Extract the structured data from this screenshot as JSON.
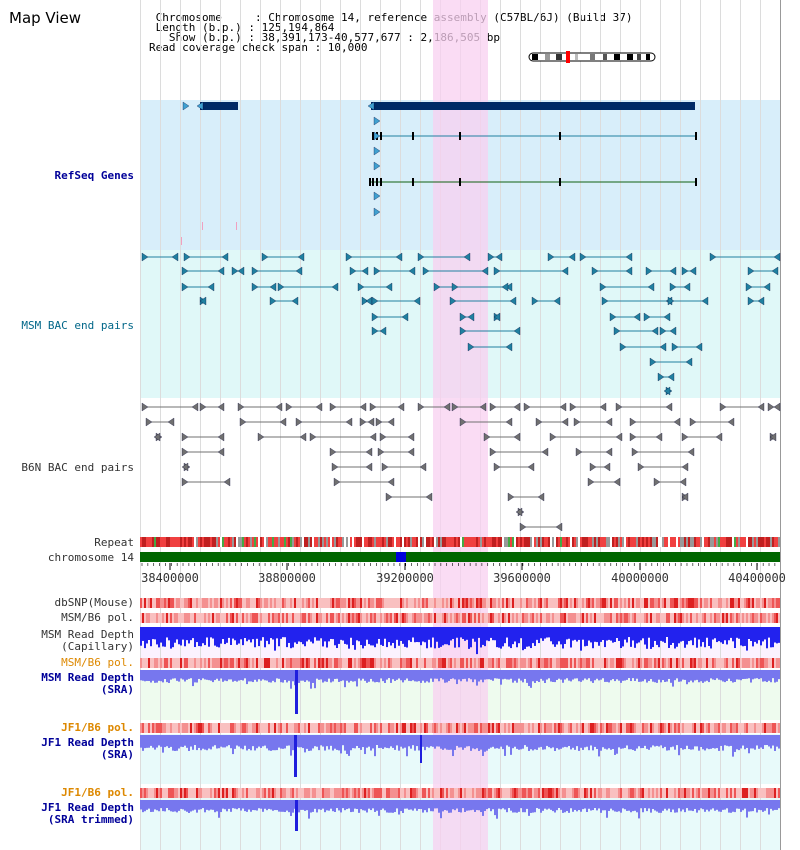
{
  "view_title": "Map View",
  "info_lines": [
    " Chromosome     : Chromosome 14, reference assembly (C57BL/6J) (Build 37)",
    " Length (b.p.) : 125,194,864",
    "   Show (b.p.) : 38,391,173-40,577,677 : 2,186,505 bp",
    "Read coverage check span : 10,000"
  ],
  "tracks": {
    "refseq": "RefSeq Genes",
    "msm_bac": "MSM BAC end pairs",
    "b6n_bac": "B6N BAC end pairs",
    "repeat": "Repeat",
    "chromosome": "chromosome 14",
    "dbsnp": "dbSNP(Mouse)",
    "msm_pol1": "MSM/B6 pol.",
    "msm_depth_cap": [
      "MSM Read Depth",
      "(Capillary)"
    ],
    "msm_pol2": "MSM/B6 pol.",
    "msm_depth_sra": [
      "MSM Read Depth",
      "(SRA)"
    ],
    "jf1_pol1": "JF1/B6 pol.",
    "jf1_depth_sra": [
      "JF1 Read Depth",
      "(SRA)"
    ],
    "jf1_pol2": "JF1/B6 pol.",
    "jf1_depth_trim": [
      "JF1 Read Depth",
      "(SRA trimmed)"
    ]
  },
  "axis_ticks": [
    "38400000",
    "38800000",
    "39200000",
    "39600000",
    "40000000",
    "40400000"
  ],
  "colors": {
    "highlight": "#f8d0f0",
    "refseq_bg": "#d8eefa",
    "bac_bg": "#e0f8f8",
    "gene": "#002a66",
    "msm_bac": "#2080a0",
    "b6n_bac": "#707070",
    "chromosome": "#006600",
    "depth_cap": "#2222ee",
    "depth_sra": "#7777ee",
    "label_navy": "#000099",
    "label_teal": "#006688",
    "label_gray": "#333333",
    "label_orange": "#dd8800"
  }
}
